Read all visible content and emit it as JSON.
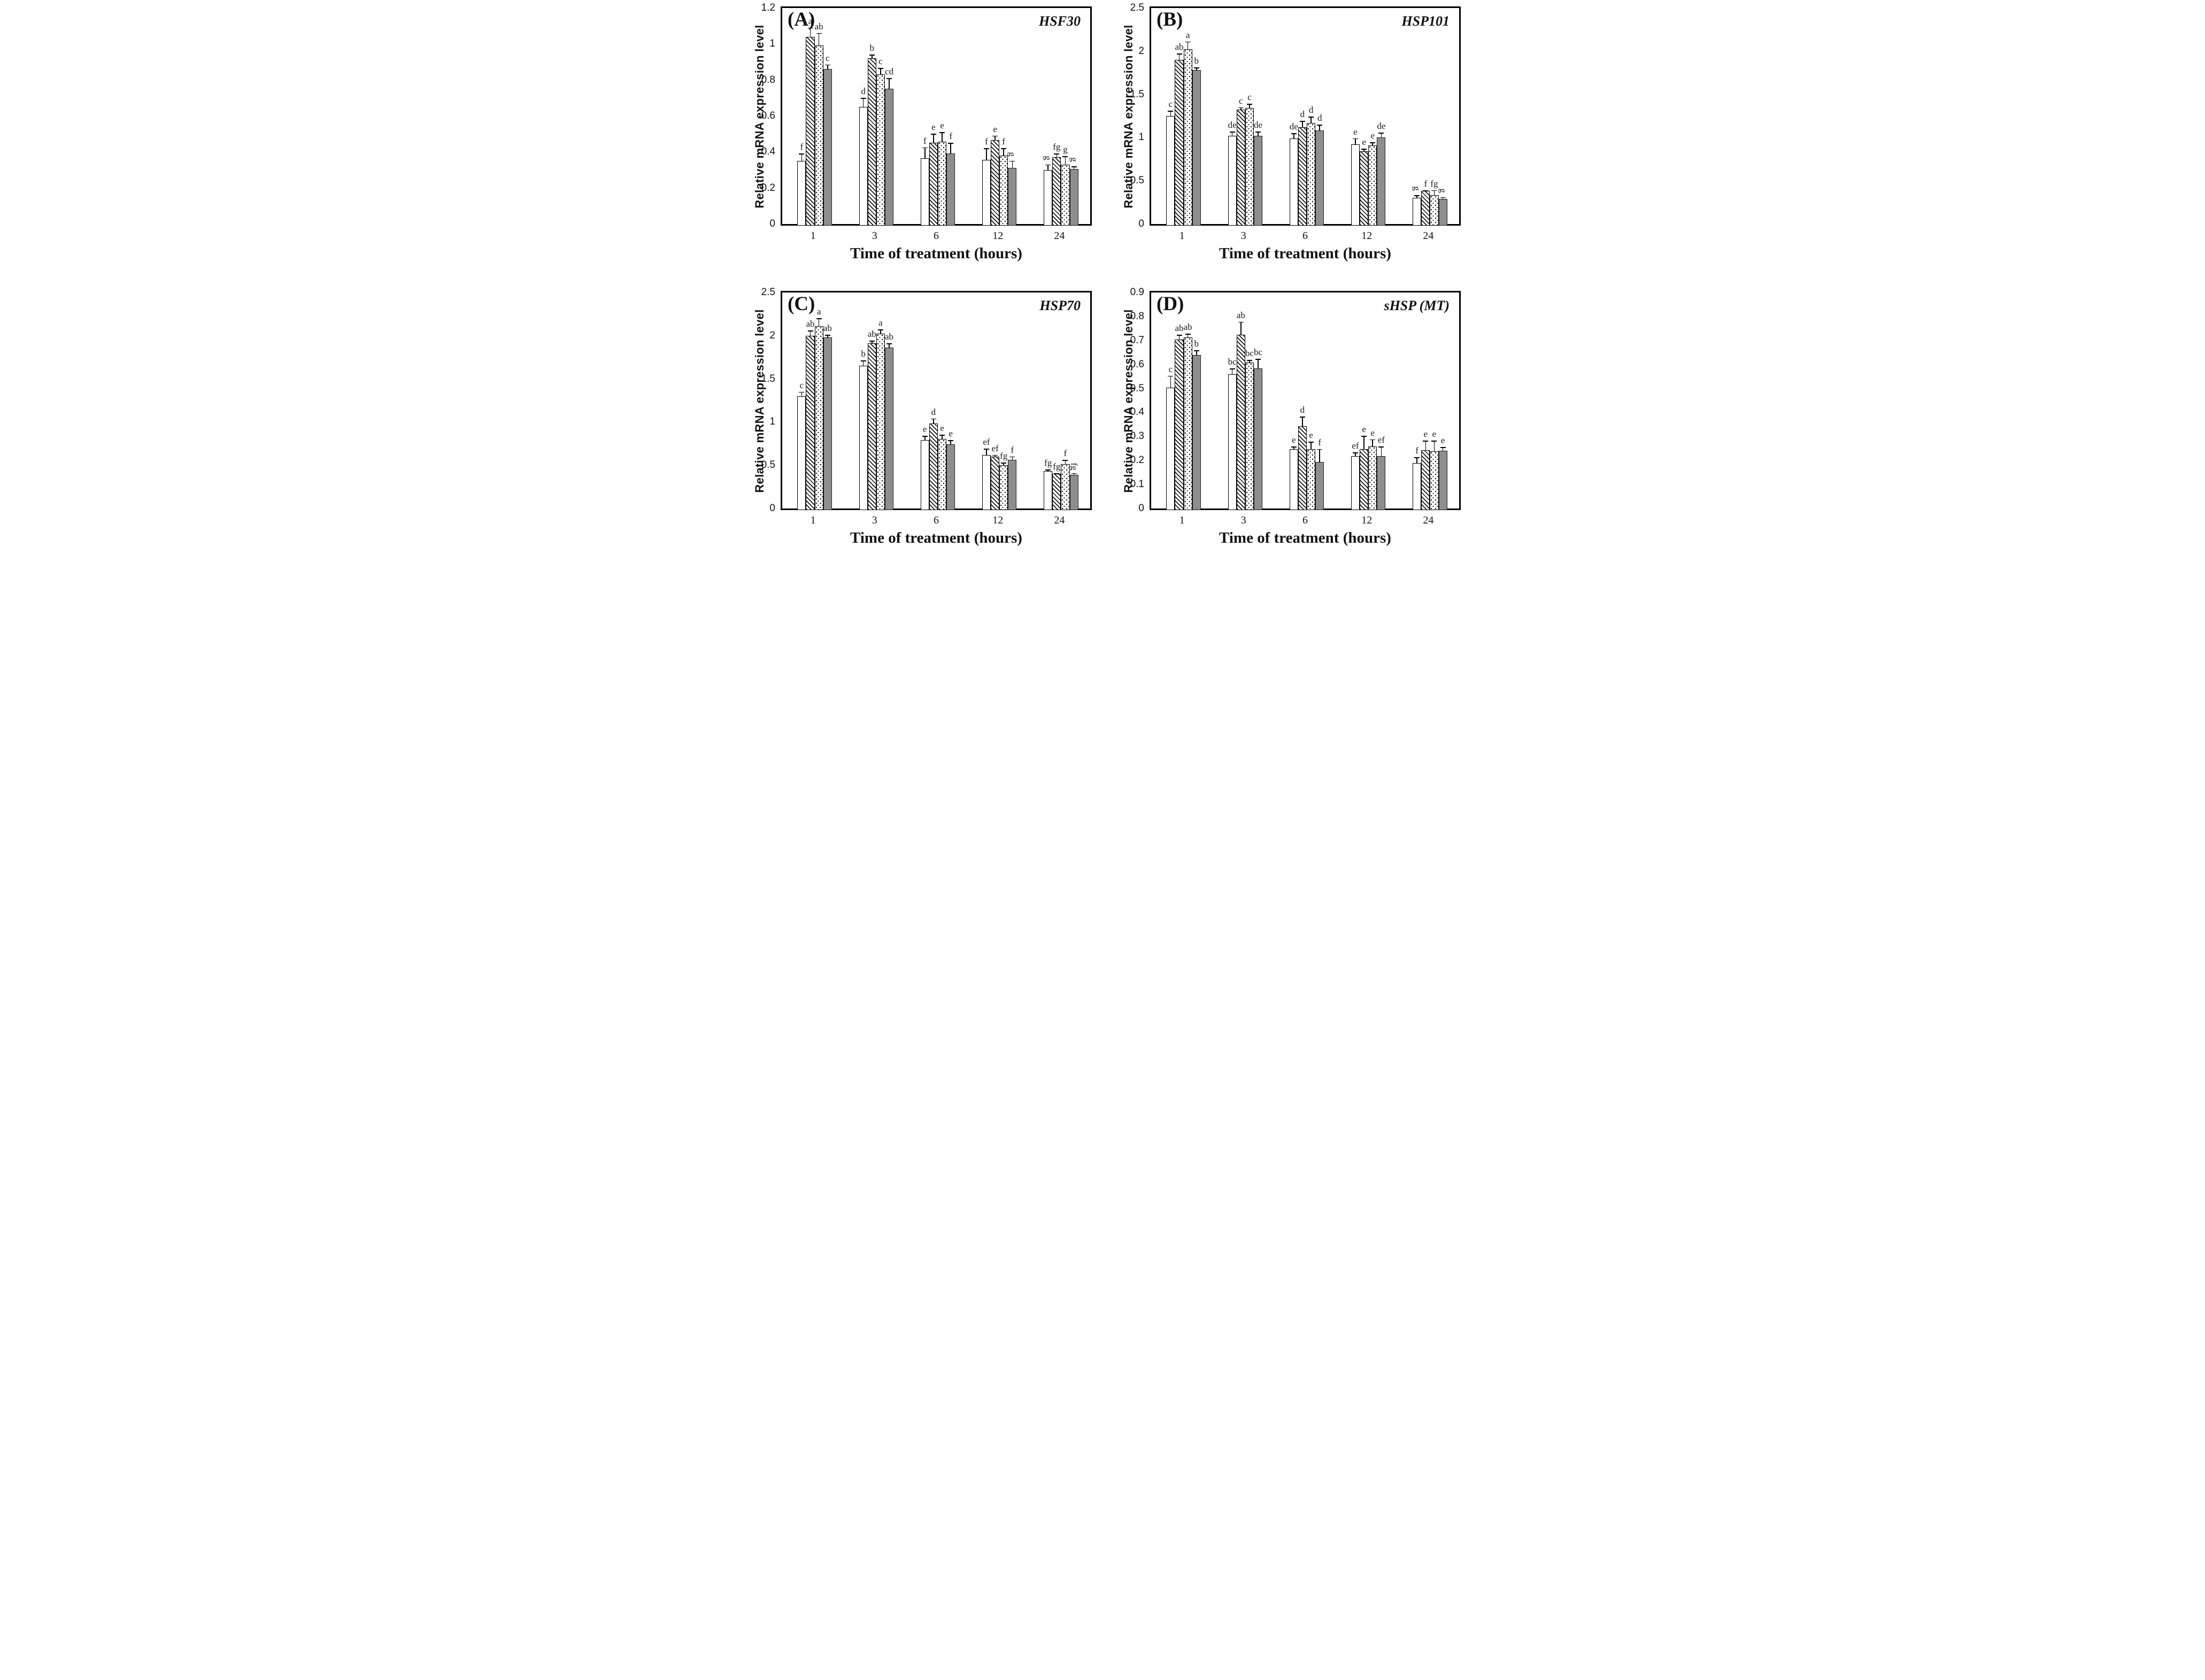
{
  "figure": {
    "y_axis_label": "Relative mRNA expression level",
    "x_axis_label": "Time of treatment (hours)",
    "background_color": "#ffffff",
    "ink_color": "#000000",
    "gray_bar_color": "#8e8e8e"
  },
  "chart_data": [
    {
      "type": "bar",
      "panel": "(A)",
      "title": "HSF30",
      "xlabel": "Time of treatment (hours)",
      "ylabel": "Relative mRNA expression level",
      "categories": [
        "1",
        "3",
        "6",
        "12",
        "24"
      ],
      "ylim": [
        0,
        1.2
      ],
      "yticks": [
        "0",
        "0.2",
        "0.4",
        "0.6",
        "0.8",
        "1",
        "1.2"
      ],
      "grid": false,
      "legend": "none",
      "series": [
        {
          "name": "open-white",
          "values": [
            0.36,
            0.66,
            0.375,
            0.365,
            0.31
          ],
          "errors": [
            0.04,
            0.05,
            0.06,
            0.065,
            0.03
          ],
          "letters": [
            "f",
            "d",
            "f",
            "f",
            "g"
          ],
          "rot": [
            0,
            0,
            0,
            0,
            1
          ]
        },
        {
          "name": "diagonal-hatch",
          "values": [
            1.05,
            0.93,
            0.46,
            0.475,
            0.38
          ],
          "errors": [
            0.05,
            0.02,
            0.05,
            0.025,
            0.02
          ],
          "letters": [
            "a",
            "b",
            "e",
            "e",
            "fg"
          ],
          "rot": [
            0,
            0,
            0,
            0,
            0
          ]
        },
        {
          "name": "dotted",
          "values": [
            1.0,
            0.84,
            0.465,
            0.39,
            0.34
          ],
          "errors": [
            0.07,
            0.035,
            0.055,
            0.04,
            0.045
          ],
          "letters": [
            "ab",
            "c",
            "e",
            "f",
            "g"
          ],
          "rot": [
            0,
            0,
            0,
            0,
            0
          ]
        },
        {
          "name": "solid-gray",
          "values": [
            0.87,
            0.76,
            0.4,
            0.32,
            0.315
          ],
          "errors": [
            0.025,
            0.06,
            0.06,
            0.04,
            0.015
          ],
          "letters": [
            "c",
            "cd",
            "f",
            "g",
            "g"
          ],
          "rot": [
            0,
            0,
            0,
            1,
            1
          ]
        }
      ]
    },
    {
      "type": "bar",
      "panel": "(B)",
      "title": "HSP101",
      "xlabel": "Time of treatment (hours)",
      "ylabel": "Relative mRNA expression level",
      "categories": [
        "1",
        "3",
        "6",
        "12",
        "24"
      ],
      "ylim": [
        0,
        2.5
      ],
      "yticks": [
        "0",
        "0.5",
        "1",
        "1.5",
        "2",
        "2.5"
      ],
      "grid": false,
      "legend": "none",
      "series": [
        {
          "name": "open-white",
          "values": [
            1.27,
            1.04,
            1.01,
            0.94,
            0.32
          ],
          "errors": [
            0.06,
            0.05,
            0.06,
            0.07,
            0.03
          ],
          "letters": [
            "c",
            "de",
            "de",
            "e",
            "g"
          ],
          "rot": [
            0,
            0,
            0,
            0,
            1
          ]
        },
        {
          "name": "diagonal-hatch",
          "values": [
            1.92,
            1.34,
            1.14,
            0.86,
            0.4
          ],
          "errors": [
            0.07,
            0.03,
            0.07,
            0.03,
            0.01
          ],
          "letters": [
            "ab",
            "c",
            "d",
            "e",
            "f"
          ],
          "rot": [
            0,
            0,
            0,
            0,
            0
          ]
        },
        {
          "name": "dotted",
          "values": [
            2.04,
            1.36,
            1.19,
            0.93,
            0.35
          ],
          "errors": [
            0.09,
            0.05,
            0.07,
            0.035,
            0.06
          ],
          "letters": [
            "a",
            "c",
            "d",
            "e",
            "fg"
          ],
          "rot": [
            0,
            0,
            0,
            0,
            0
          ]
        },
        {
          "name": "solid-gray",
          "values": [
            1.8,
            1.04,
            1.1,
            1.02,
            0.31
          ],
          "errors": [
            0.03,
            0.05,
            0.07,
            0.055,
            0.02
          ],
          "letters": [
            "b",
            "de",
            "d",
            "de",
            "g"
          ],
          "rot": [
            0,
            0,
            0,
            0,
            1
          ]
        }
      ]
    },
    {
      "type": "bar",
      "panel": "(C)",
      "title": "HSP70",
      "xlabel": "Time of treatment (hours)",
      "ylabel": "Relative mRNA expression level",
      "categories": [
        "1",
        "3",
        "6",
        "12",
        "24"
      ],
      "ylim": [
        0,
        2.5
      ],
      "yticks": [
        "0",
        "0.5",
        "1",
        "1.5",
        "2",
        "2.5"
      ],
      "grid": false,
      "legend": "none",
      "series": [
        {
          "name": "open-white",
          "values": [
            1.32,
            1.67,
            0.81,
            0.64,
            0.45
          ],
          "errors": [
            0.05,
            0.06,
            0.05,
            0.07,
            0.02
          ],
          "letters": [
            "c",
            "b",
            "e",
            "ef",
            "fg"
          ],
          "rot": [
            0,
            0,
            0,
            0,
            0
          ]
        },
        {
          "name": "diagonal-hatch",
          "values": [
            2.02,
            1.93,
            1.0,
            0.62,
            0.42
          ],
          "errors": [
            0.06,
            0.03,
            0.06,
            0.02,
            0.01
          ],
          "letters": [
            "ab",
            "ab",
            "d",
            "ef",
            "fg"
          ],
          "rot": [
            0,
            0,
            0,
            0,
            0
          ]
        },
        {
          "name": "dotted",
          "values": [
            2.13,
            2.04,
            0.82,
            0.52,
            0.53
          ],
          "errors": [
            0.09,
            0.05,
            0.05,
            0.03,
            0.05
          ],
          "letters": [
            "a",
            "a",
            "e",
            "fg",
            "f"
          ],
          "rot": [
            0,
            0,
            0,
            0,
            0
          ]
        },
        {
          "name": "solid-gray",
          "values": [
            2.0,
            1.88,
            0.76,
            0.58,
            0.41
          ],
          "errors": [
            0.03,
            0.05,
            0.05,
            0.04,
            0.02
          ],
          "letters": [
            "ab",
            "ab",
            "e",
            "f",
            "fg"
          ],
          "rot": [
            0,
            0,
            0,
            0,
            1
          ]
        }
      ]
    },
    {
      "type": "bar",
      "panel": "(D)",
      "title": "sHSP (MT)",
      "xlabel": "Time of treatment (hours)",
      "ylabel": "Relative mRNA expression level",
      "categories": [
        "1",
        "3",
        "6",
        "12",
        "24"
      ],
      "ylim": [
        0,
        0.9
      ],
      "yticks": [
        "0",
        "0.1",
        "0.2",
        "0.3",
        "0.4",
        "0.5",
        "0.6",
        "0.7",
        "0.8",
        "0.9"
      ],
      "grid": false,
      "legend": "none",
      "series": [
        {
          "name": "open-white",
          "values": [
            0.51,
            0.565,
            0.255,
            0.225,
            0.195
          ],
          "errors": [
            0.05,
            0.025,
            0.01,
            0.015,
            0.025
          ],
          "letters": [
            "c",
            "bc",
            "e",
            "ef",
            "f"
          ],
          "rot": [
            0,
            0,
            0,
            0,
            0
          ]
        },
        {
          "name": "diagonal-hatch",
          "values": [
            0.71,
            0.73,
            0.35,
            0.255,
            0.25
          ],
          "errors": [
            0.02,
            0.055,
            0.04,
            0.055,
            0.04
          ],
          "letters": [
            "ab",
            "ab",
            "d",
            "e",
            "e"
          ],
          "rot": [
            0,
            0,
            0,
            0,
            0
          ]
        },
        {
          "name": "dotted",
          "values": [
            0.72,
            0.615,
            0.255,
            0.265,
            0.245
          ],
          "errors": [
            0.015,
            0.01,
            0.03,
            0.03,
            0.045
          ],
          "letters": [
            "ab",
            "bc",
            "e",
            "e",
            "e"
          ],
          "rot": [
            0,
            0,
            0,
            0,
            0
          ]
        },
        {
          "name": "solid-gray",
          "values": [
            0.645,
            0.59,
            0.2,
            0.225,
            0.248
          ],
          "errors": [
            0.02,
            0.04,
            0.055,
            0.04,
            0.015
          ],
          "letters": [
            "b",
            "bc",
            "f",
            "ef",
            "e"
          ],
          "rot": [
            0,
            0,
            0,
            0,
            0
          ]
        }
      ]
    }
  ]
}
